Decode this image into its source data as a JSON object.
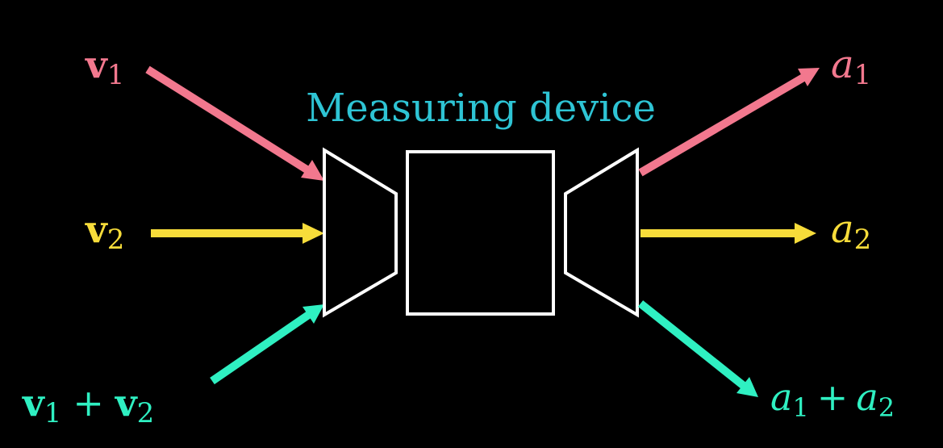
{
  "title": "Measuring device",
  "colors": {
    "background": "#000000",
    "title": "#2ec4d4",
    "v1": "#f2788e",
    "v2": "#f7dc3a",
    "sum": "#2ff0c2",
    "outline": "#ffffff"
  },
  "inputs": [
    {
      "symbol": "v",
      "sub": "1",
      "color_key": "v1"
    },
    {
      "symbol": "v",
      "sub": "2",
      "color_key": "v2"
    },
    {
      "symbol": "v",
      "sub": "1",
      "plus": "+",
      "symbol2": "v",
      "sub2": "2",
      "color_key": "sum"
    }
  ],
  "outputs": [
    {
      "symbol": "a",
      "sub": "1",
      "color_key": "v1"
    },
    {
      "symbol": "a",
      "sub": "2",
      "color_key": "v2"
    },
    {
      "symbol": "a",
      "sub": "1",
      "plus": "+",
      "symbol2": "a",
      "sub2": "2",
      "color_key": "sum"
    }
  ],
  "icons": [
    "input-funnel-icon",
    "device-box-icon",
    "output-funnel-icon"
  ]
}
